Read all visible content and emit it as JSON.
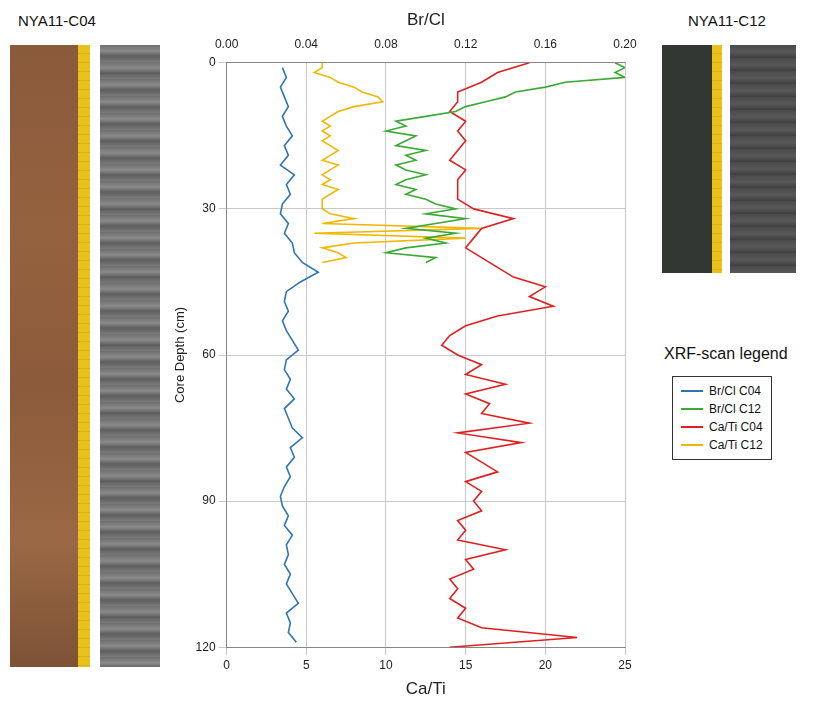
{
  "chart_data": {
    "type": "line",
    "panel_titles": [
      "NYA11-C04",
      "NYA11-C12"
    ],
    "y_label": "Core Depth (cm)",
    "x_label": "Ca/Ti",
    "x2_label": "Br/Cl",
    "legend_title": "XRF-scan legend",
    "legend": "right",
    "grid": true,
    "xlim": [
      0,
      25
    ],
    "xticks": [
      0,
      5,
      10,
      15,
      20,
      25
    ],
    "x2lim": [
      0,
      0.2
    ],
    "x2ticks": [
      {
        "value": 0,
        "label": "0.00"
      },
      {
        "value": 0.04,
        "label": "0.04"
      },
      {
        "value": 0.08,
        "label": "0.08"
      },
      {
        "value": 0.12,
        "label": "0.12"
      },
      {
        "value": 0.16,
        "label": "0.16"
      },
      {
        "value": 0.2,
        "label": "0.20"
      }
    ],
    "ylim": [
      0,
      120
    ],
    "yticks": [
      0,
      30,
      60,
      90,
      120
    ],
    "series": [
      {
        "name": "Br/Cl C04",
        "color": "#2e75b6",
        "axis": "x2",
        "depth": [
          1,
          3,
          5,
          7,
          9,
          11,
          13,
          15,
          17,
          19,
          21,
          23,
          25,
          27,
          29,
          31,
          33,
          35,
          37,
          39,
          41,
          43,
          45,
          47,
          49,
          51,
          53,
          55,
          57,
          59,
          61,
          63,
          65,
          67,
          69,
          71,
          73,
          75,
          77,
          79,
          81,
          83,
          85,
          87,
          89,
          91,
          93,
          95,
          97,
          99,
          101,
          103,
          105,
          107,
          109,
          111,
          113,
          115,
          117,
          119
        ],
        "values": [
          0.028,
          0.03,
          0.027,
          0.029,
          0.031,
          0.028,
          0.03,
          0.033,
          0.029,
          0.031,
          0.027,
          0.034,
          0.03,
          0.032,
          0.028,
          0.027,
          0.031,
          0.029,
          0.033,
          0.034,
          0.038,
          0.046,
          0.037,
          0.03,
          0.029,
          0.031,
          0.028,
          0.03,
          0.033,
          0.036,
          0.03,
          0.029,
          0.032,
          0.03,
          0.034,
          0.029,
          0.031,
          0.033,
          0.038,
          0.032,
          0.034,
          0.03,
          0.032,
          0.029,
          0.027,
          0.028,
          0.031,
          0.029,
          0.033,
          0.03,
          0.031,
          0.029,
          0.032,
          0.03,
          0.033,
          0.036,
          0.03,
          0.032,
          0.031,
          0.035
        ]
      },
      {
        "name": "Br/Cl C12",
        "color": "#3aaa35",
        "axis": "x2",
        "depth": [
          0,
          1,
          2,
          3,
          4,
          5,
          6,
          7,
          8,
          9,
          10,
          11,
          12,
          13,
          14,
          15,
          16,
          17,
          18,
          19,
          20,
          21,
          22,
          23,
          24,
          25,
          26,
          27,
          28,
          29,
          30,
          31,
          32,
          33,
          34,
          35,
          36,
          37,
          38,
          39,
          40,
          41
        ],
        "values": [
          0.195,
          0.2,
          0.195,
          0.2,
          0.17,
          0.16,
          0.145,
          0.14,
          0.13,
          0.12,
          0.115,
          0.1,
          0.085,
          0.09,
          0.08,
          0.095,
          0.09,
          0.085,
          0.1,
          0.09,
          0.095,
          0.085,
          0.09,
          0.1,
          0.09,
          0.085,
          0.095,
          0.09,
          0.1,
          0.105,
          0.115,
          0.1,
          0.12,
          0.105,
          0.09,
          0.115,
          0.1,
          0.11,
          0.09,
          0.08,
          0.105,
          0.1
        ]
      },
      {
        "name": "Ca/Ti C04",
        "color": "#e02020",
        "axis": "x",
        "depth": [
          0,
          2,
          4,
          6,
          8,
          10,
          12,
          14,
          16,
          18,
          20,
          22,
          24,
          26,
          28,
          30,
          32,
          34,
          36,
          38,
          40,
          42,
          44,
          46,
          48,
          50,
          52,
          54,
          56,
          58,
          60,
          62,
          64,
          66,
          68,
          70,
          72,
          74,
          76,
          78,
          80,
          82,
          84,
          86,
          88,
          90,
          92,
          94,
          96,
          98,
          100,
          102,
          104,
          106,
          108,
          110,
          112,
          114,
          116,
          118,
          120
        ],
        "values": [
          19,
          17,
          16,
          14.5,
          14.5,
          14,
          15,
          14.5,
          15,
          14.5,
          14,
          15,
          14.5,
          14.5,
          14.5,
          15.5,
          18,
          16,
          15.5,
          15,
          16,
          17,
          18,
          20,
          19,
          20.5,
          17,
          15,
          14,
          13.5,
          14.5,
          16,
          15,
          17.5,
          15,
          16.5,
          16,
          19,
          14.5,
          18.5,
          15,
          16,
          17,
          15,
          16,
          15.5,
          16,
          14.5,
          15,
          14.5,
          17.5,
          15,
          15.5,
          14,
          14.5,
          14,
          15,
          14.5,
          16,
          22,
          14
        ]
      },
      {
        "name": "Ca/Ti C12",
        "color": "#f2b705",
        "axis": "x",
        "depth": [
          0,
          1,
          2,
          3,
          4,
          5,
          6,
          7,
          8,
          9,
          10,
          11,
          12,
          13,
          14,
          15,
          16,
          17,
          18,
          19,
          20,
          21,
          22,
          23,
          24,
          25,
          26,
          27,
          28,
          29,
          30,
          31,
          32,
          33,
          34,
          35,
          36,
          37,
          38,
          39,
          40,
          41
        ],
        "values": [
          6,
          6,
          5.5,
          6.5,
          7,
          8,
          8.5,
          9.5,
          9.8,
          8,
          7,
          6.5,
          6,
          6.5,
          6,
          6.5,
          6,
          6.5,
          7,
          6.5,
          6,
          7,
          6.5,
          6,
          6.5,
          6,
          7,
          6.5,
          6,
          6,
          6,
          6.5,
          8,
          6,
          16,
          5.5,
          15,
          8,
          6,
          7,
          7.5,
          6
        ]
      }
    ]
  }
}
